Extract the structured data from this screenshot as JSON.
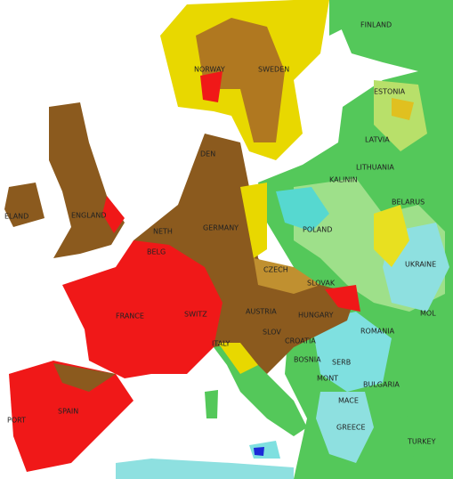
{
  "labels": {
    "finland": "FINLAND",
    "norway": "NORWAY",
    "sweden": "SWEDEN",
    "estonia": "ESTONIA",
    "latvia": "LATVIA",
    "lithuania": "LITHUANIA",
    "kalinin": "KALININ",
    "belarus": "BELARUS",
    "den": "DEN",
    "ireland": "ELAND",
    "england": "ENGLAND",
    "neth": "NETH",
    "belg": "BELG",
    "germany": "GERMANY",
    "poland": "POLAND",
    "ukraine": "UKRAINE",
    "czech": "CZECH",
    "slovak": "SLOVAK",
    "france": "FRANCE",
    "switz": "SWITZ",
    "austria": "AUSTRIA",
    "hungary": "HUNGARY",
    "mol": "MOL",
    "romania": "ROMANIA",
    "slov": "SLOV",
    "croatia": "CROATIA",
    "bosnia": "BOSNIA",
    "serb": "SERB",
    "mont": "MONT",
    "bulgaria": "BULGARIA",
    "mace": "MACE",
    "italy": "ITALY",
    "greece": "GREECE",
    "turkey": "TURKEY",
    "port": "PORT",
    "spain": "SPAIN"
  }
}
